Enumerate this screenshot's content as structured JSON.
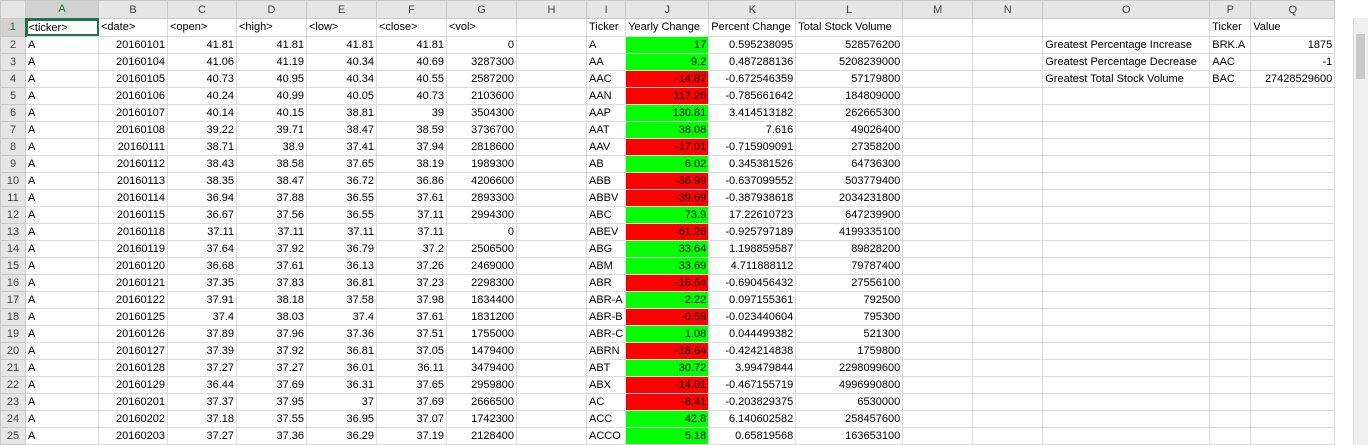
{
  "columns": [
    "A",
    "B",
    "C",
    "D",
    "E",
    "F",
    "G",
    "H",
    "I",
    "J",
    "K",
    "L",
    "M",
    "N",
    "O",
    "P",
    "Q"
  ],
  "active_cell": "A1",
  "colors": {
    "positive": "#00ff00",
    "negative": "#ff0000",
    "accent": "#217346"
  },
  "stock_header": [
    "<ticker>",
    "<date>",
    "<open>",
    "<high>",
    "<low>",
    "<close>",
    "<vol>"
  ],
  "stock_rows": [
    [
      "A",
      "20160101",
      "41.81",
      "41.81",
      "41.81",
      "41.81",
      "0"
    ],
    [
      "A",
      "20160104",
      "41.06",
      "41.19",
      "40.34",
      "40.69",
      "3287300"
    ],
    [
      "A",
      "20160105",
      "40.73",
      "40.95",
      "40.34",
      "40.55",
      "2587200"
    ],
    [
      "A",
      "20160106",
      "40.24",
      "40.99",
      "40.05",
      "40.73",
      "2103600"
    ],
    [
      "A",
      "20160107",
      "40.14",
      "40.15",
      "38.81",
      "39",
      "3504300"
    ],
    [
      "A",
      "20160108",
      "39.22",
      "39.71",
      "38.47",
      "38.59",
      "3736700"
    ],
    [
      "A",
      "20160111",
      "38.71",
      "38.9",
      "37.41",
      "37.94",
      "2818600"
    ],
    [
      "A",
      "20160112",
      "38.43",
      "38.58",
      "37.65",
      "38.19",
      "1989300"
    ],
    [
      "A",
      "20160113",
      "38.35",
      "38.47",
      "36.72",
      "36.86",
      "4206600"
    ],
    [
      "A",
      "20160114",
      "36.94",
      "37.88",
      "36.55",
      "37.61",
      "2893300"
    ],
    [
      "A",
      "20160115",
      "36.67",
      "37.56",
      "36.55",
      "37.11",
      "2994300"
    ],
    [
      "A",
      "20160118",
      "37.11",
      "37.11",
      "37.11",
      "37.11",
      "0"
    ],
    [
      "A",
      "20160119",
      "37.64",
      "37.92",
      "36.79",
      "37.2",
      "2506500"
    ],
    [
      "A",
      "20160120",
      "36.68",
      "37.61",
      "36.13",
      "37.26",
      "2469000"
    ],
    [
      "A",
      "20160121",
      "37.35",
      "37.83",
      "36.81",
      "37.23",
      "2298300"
    ],
    [
      "A",
      "20160122",
      "37.91",
      "38.18",
      "37.58",
      "37.98",
      "1834400"
    ],
    [
      "A",
      "20160125",
      "37.4",
      "38.03",
      "37.4",
      "37.61",
      "1831200"
    ],
    [
      "A",
      "20160126",
      "37.89",
      "37.96",
      "37.36",
      "37.51",
      "1755000"
    ],
    [
      "A",
      "20160127",
      "37.39",
      "37.92",
      "36.81",
      "37.05",
      "1479400"
    ],
    [
      "A",
      "20160128",
      "37.27",
      "37.27",
      "36.01",
      "36.11",
      "3479400"
    ],
    [
      "A",
      "20160129",
      "36.44",
      "37.69",
      "36.31",
      "37.65",
      "2959800"
    ],
    [
      "A",
      "20160201",
      "37.37",
      "37.95",
      "37",
      "37.69",
      "2666500"
    ],
    [
      "A",
      "20160202",
      "37.18",
      "37.55",
      "36.95",
      "37.07",
      "1742300"
    ],
    [
      "A",
      "20160203",
      "37.27",
      "37.36",
      "36.29",
      "37.19",
      "2128400"
    ]
  ],
  "summary_header": [
    "Ticker",
    "Yearly Change",
    "Percent Change",
    "Total Stock Volume"
  ],
  "summary_rows": [
    {
      "ticker": "A",
      "change": "17",
      "pct": "0.595238095",
      "vol": "528576200",
      "sign": "pos"
    },
    {
      "ticker": "AA",
      "change": "9.2",
      "pct": "0.487288136",
      "vol": "5208239000",
      "sign": "pos"
    },
    {
      "ticker": "AAC",
      "change": "-14.87",
      "pct": "-0.672546359",
      "vol": "57179800",
      "sign": "neg"
    },
    {
      "ticker": "AAN",
      "change": "-117.26",
      "pct": "-0.785661642",
      "vol": "184809000",
      "sign": "neg"
    },
    {
      "ticker": "AAP",
      "change": "130.81",
      "pct": "3.414513182",
      "vol": "262665300",
      "sign": "pos"
    },
    {
      "ticker": "AAT",
      "change": "38.08",
      "pct": "7.616",
      "vol": "49026400",
      "sign": "pos"
    },
    {
      "ticker": "AAV",
      "change": "-17.01",
      "pct": "-0.715909091",
      "vol": "27358200",
      "sign": "neg"
    },
    {
      "ticker": "AB",
      "change": "6.02",
      "pct": "0.345381526",
      "vol": "64736300",
      "sign": "pos"
    },
    {
      "ticker": "ABB",
      "change": "-36.99",
      "pct": "-0.637099552",
      "vol": "503779400",
      "sign": "neg"
    },
    {
      "ticker": "ABBV",
      "change": "-39.69",
      "pct": "-0.387938618",
      "vol": "2034231800",
      "sign": "neg"
    },
    {
      "ticker": "ABC",
      "change": "73.9",
      "pct": "17.22610723",
      "vol": "647239900",
      "sign": "pos"
    },
    {
      "ticker": "ABEV",
      "change": "-61.26",
      "pct": "-0.925797189",
      "vol": "4199335100",
      "sign": "neg"
    },
    {
      "ticker": "ABG",
      "change": "33.64",
      "pct": "1.198859587",
      "vol": "89828200",
      "sign": "pos"
    },
    {
      "ticker": "ABM",
      "change": "33.69",
      "pct": "4.711888112",
      "vol": "79787400",
      "sign": "pos"
    },
    {
      "ticker": "ABR",
      "change": "-16.64",
      "pct": "-0.690456432",
      "vol": "27556100",
      "sign": "neg"
    },
    {
      "ticker": "ABR-A",
      "change": "2.22",
      "pct": "0.097155361",
      "vol": "792500",
      "sign": "pos"
    },
    {
      "ticker": "ABR-B",
      "change": "-0.59",
      "pct": "-0.023440604",
      "vol": "795300",
      "sign": "neg"
    },
    {
      "ticker": "ABR-C",
      "change": "1.08",
      "pct": "0.044499382",
      "vol": "521300",
      "sign": "pos"
    },
    {
      "ticker": "ABRN",
      "change": "-18.64",
      "pct": "-0.424214838",
      "vol": "1759800",
      "sign": "neg"
    },
    {
      "ticker": "ABT",
      "change": "30.72",
      "pct": "3.99479844",
      "vol": "2298099600",
      "sign": "pos"
    },
    {
      "ticker": "ABX",
      "change": "-14.01",
      "pct": "-0.467155719",
      "vol": "4996990800",
      "sign": "neg"
    },
    {
      "ticker": "AC",
      "change": "-8.41",
      "pct": "-0.203829375",
      "vol": "6530000",
      "sign": "neg"
    },
    {
      "ticker": "ACC",
      "change": "42.8",
      "pct": "6.140602582",
      "vol": "258457600",
      "sign": "pos"
    },
    {
      "ticker": "ACCO",
      "change": "5.18",
      "pct": "0.65819568",
      "vol": "163653100",
      "sign": "pos"
    }
  ],
  "greatest": {
    "header": {
      "ticker": "Ticker",
      "value": "Value"
    },
    "rows": [
      {
        "label": "Greatest Percentage Increase",
        "ticker": "BRK.A",
        "value": "1875"
      },
      {
        "label": "Greatest Percentage Decrease",
        "ticker": "AAC",
        "value": "-1"
      },
      {
        "label": "Greatest Total Stock Volume",
        "ticker": "BAC",
        "value": "27428529600"
      }
    ]
  }
}
